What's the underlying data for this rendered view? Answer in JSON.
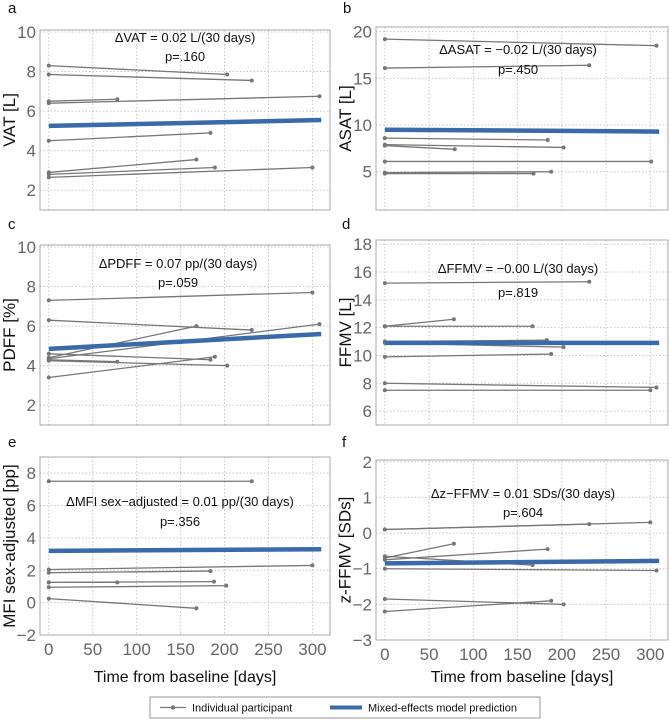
{
  "colors": {
    "participant": "#777777",
    "model": "#3a6aa8",
    "grid": "#c8c8c8",
    "frame": "#aaaaaa"
  },
  "legend": {
    "participant_label": "Individual participant",
    "model_label": "Mixed-effects model prediction"
  },
  "chart_data": [
    {
      "type": "line",
      "panel": "a",
      "ylabel": "VAT [L]",
      "annotation": "ΔVAT = 0.02 L/(30 days)",
      "pvalue": "p=.160",
      "xlabel": "",
      "xlim": [
        -10,
        320
      ],
      "ylim": [
        1,
        10.1
      ],
      "xticks": [
        0,
        50,
        100,
        150,
        200,
        250,
        300
      ],
      "yticks": [
        2,
        4,
        6,
        8,
        10
      ],
      "show_xtick_labels": false,
      "participants": [
        [
          [
            0,
            8.3
          ],
          [
            203,
            7.85
          ]
        ],
        [
          [
            0,
            7.85
          ],
          [
            231,
            7.55
          ]
        ],
        [
          [
            0,
            6.5
          ],
          [
            78,
            6.6
          ]
        ],
        [
          [
            0,
            6.4
          ],
          [
            308,
            6.75
          ]
        ],
        [
          [
            0,
            4.5
          ],
          [
            184,
            4.9
          ]
        ],
        [
          [
            0,
            2.9
          ],
          [
            168,
            3.55
          ]
        ],
        [
          [
            0,
            2.8
          ],
          [
            189,
            3.15
          ]
        ],
        [
          [
            0,
            2.65
          ],
          [
            300,
            3.15
          ]
        ]
      ],
      "model": [
        [
          0,
          5.25
        ],
        [
          310,
          5.55
        ]
      ]
    },
    {
      "type": "line",
      "panel": "b",
      "ylabel": "ASAT [L]",
      "annotation": "ΔASAT = −0.02 L/(30 days)",
      "pvalue": "p=.450",
      "xlabel": "",
      "xlim": [
        -10,
        320
      ],
      "ylim": [
        0.9,
        20.5
      ],
      "xticks": [
        0,
        50,
        100,
        150,
        200,
        250,
        300
      ],
      "yticks": [
        5,
        10,
        15,
        20
      ],
      "show_xtick_labels": false,
      "participants": [
        [
          [
            0,
            19.2
          ],
          [
            307,
            18.5
          ]
        ],
        [
          [
            0,
            16.1
          ],
          [
            231,
            16.4
          ]
        ],
        [
          [
            0,
            8.6
          ],
          [
            184,
            8.4
          ]
        ],
        [
          [
            0,
            7.9
          ],
          [
            202,
            7.6
          ]
        ],
        [
          [
            0,
            7.8
          ],
          [
            79,
            7.4
          ]
        ],
        [
          [
            0,
            6.1
          ],
          [
            301,
            6.1
          ]
        ],
        [
          [
            0,
            4.9
          ],
          [
            188,
            5.0
          ]
        ],
        [
          [
            0,
            4.8
          ],
          [
            168,
            4.8
          ]
        ]
      ],
      "model": [
        [
          0,
          9.5
        ],
        [
          310,
          9.3
        ]
      ]
    },
    {
      "type": "line",
      "panel": "c",
      "ylabel": "PDFF [%]",
      "annotation": "ΔPDFF = 0.07 pp/(30 days)",
      "pvalue": "p=.059",
      "xlabel": "",
      "xlim": [
        -10,
        320
      ],
      "ylim": [
        1,
        10.1
      ],
      "xticks": [
        0,
        50,
        100,
        150,
        200,
        250,
        300
      ],
      "yticks": [
        2,
        4,
        6,
        8,
        10
      ],
      "show_xtick_labels": false,
      "participants": [
        [
          [
            0,
            7.3
          ],
          [
            300,
            7.7
          ]
        ],
        [
          [
            0,
            6.3
          ],
          [
            231,
            5.8
          ]
        ],
        [
          [
            0,
            4.4
          ],
          [
            168,
            6.0
          ]
        ],
        [
          [
            0,
            4.35
          ],
          [
            308,
            6.1
          ]
        ],
        [
          [
            0,
            4.6
          ],
          [
            184,
            4.3
          ]
        ],
        [
          [
            0,
            4.3
          ],
          [
            78,
            4.2
          ]
        ],
        [
          [
            0,
            4.25
          ],
          [
            203,
            4.0
          ]
        ],
        [
          [
            0,
            3.4
          ],
          [
            189,
            4.45
          ]
        ]
      ],
      "model": [
        [
          0,
          4.85
        ],
        [
          310,
          5.6
        ]
      ]
    },
    {
      "type": "line",
      "panel": "d",
      "ylabel": "FFMV [L]",
      "annotation": "ΔFFMV = −0.00 L/(30 days)",
      "pvalue": "p=.819",
      "xlabel": "",
      "xlim": [
        -10,
        320
      ],
      "ylim": [
        5,
        18.3
      ],
      "xticks": [
        0,
        50,
        100,
        150,
        200,
        250,
        300
      ],
      "yticks": [
        6,
        8,
        10,
        12,
        14,
        16,
        18
      ],
      "show_xtick_labels": false,
      "participants": [
        [
          [
            0,
            15.2
          ],
          [
            231,
            15.3
          ]
        ],
        [
          [
            0,
            12.1
          ],
          [
            78,
            12.6
          ]
        ],
        [
          [
            0,
            12.1
          ],
          [
            167,
            12.1
          ]
        ],
        [
          [
            0,
            11.0
          ],
          [
            183,
            11.1
          ]
        ],
        [
          [
            0,
            10.9
          ],
          [
            202,
            10.6
          ]
        ],
        [
          [
            0,
            9.9
          ],
          [
            188,
            10.1
          ]
        ],
        [
          [
            0,
            8.0
          ],
          [
            307,
            7.7
          ]
        ],
        [
          [
            0,
            7.5
          ],
          [
            300,
            7.5
          ]
        ]
      ],
      "model": [
        [
          0,
          10.9
        ],
        [
          310,
          10.9
        ]
      ]
    },
    {
      "type": "line",
      "panel": "e",
      "ylabel": "MFI sex-adjusted [pp]",
      "annotation": "ΔMFI sex−adjusted = 0.01 pp/(30 days)",
      "pvalue": "p=.356",
      "xlabel": "Time from baseline [days]",
      "xlim": [
        -10,
        320
      ],
      "ylim": [
        -2,
        9
      ],
      "xticks": [
        0,
        50,
        100,
        150,
        200,
        250,
        300
      ],
      "yticks": [
        -2,
        0,
        2,
        4,
        6,
        8
      ],
      "show_xtick_labels": true,
      "participants": [
        [
          [
            0,
            7.5
          ],
          [
            231,
            7.5
          ]
        ],
        [
          [
            0,
            2.05
          ],
          [
            300,
            2.3
          ]
        ],
        [
          [
            0,
            1.85
          ],
          [
            184,
            1.95
          ]
        ],
        [
          [
            0,
            1.25
          ],
          [
            78,
            1.25
          ]
        ],
        [
          [
            0,
            1.25
          ],
          [
            188,
            1.3
          ]
        ],
        [
          [
            0,
            0.95
          ],
          [
            202,
            1.05
          ]
        ],
        [
          [
            0,
            0.25
          ],
          [
            168,
            -0.35
          ]
        ]
      ],
      "model": [
        [
          0,
          3.2
        ],
        [
          310,
          3.3
        ]
      ]
    },
    {
      "type": "line",
      "panel": "f",
      "ylabel": "z-FFMV [SDs]",
      "annotation": "Δz−FFMV = 0.01 SDs/(30 days)",
      "pvalue": "p=.604",
      "xlabel": "Time from baseline [days]",
      "xlim": [
        -10,
        320
      ],
      "ylim": [
        -3,
        2.05
      ],
      "xticks": [
        0,
        50,
        100,
        150,
        200,
        250,
        300
      ],
      "yticks": [
        -3,
        -2,
        -1,
        0,
        1,
        2
      ],
      "show_xtick_labels": true,
      "participants": [
        [
          [
            0,
            0.1
          ],
          [
            300,
            0.3
          ]
        ],
        [
          [
            0,
            0.1
          ],
          [
            231,
            0.25
          ]
        ],
        [
          [
            0,
            -0.7
          ],
          [
            78,
            -0.3
          ]
        ],
        [
          [
            0,
            -0.75
          ],
          [
            184,
            -0.45
          ]
        ],
        [
          [
            0,
            -0.65
          ],
          [
            167,
            -0.9
          ]
        ],
        [
          [
            0,
            -1.0
          ],
          [
            307,
            -1.05
          ]
        ],
        [
          [
            0,
            -1.85
          ],
          [
            202,
            -2.0
          ]
        ],
        [
          [
            0,
            -2.2
          ],
          [
            188,
            -1.9
          ]
        ]
      ],
      "model": [
        [
          0,
          -0.85
        ],
        [
          310,
          -0.78
        ]
      ]
    }
  ]
}
